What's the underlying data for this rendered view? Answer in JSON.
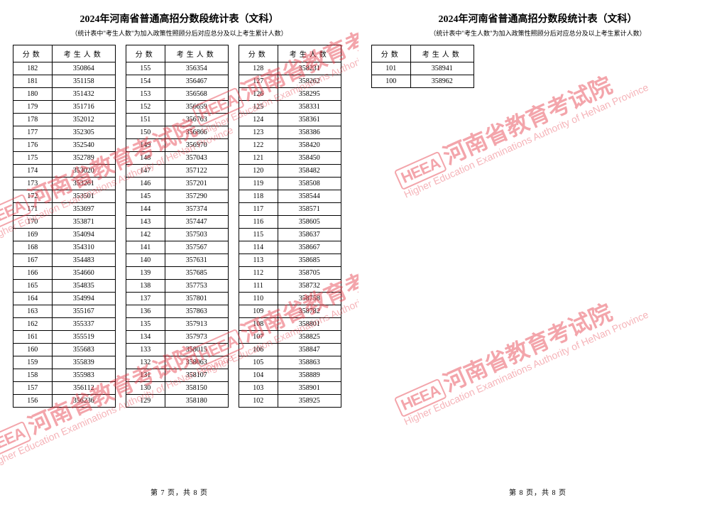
{
  "document": {
    "title": "2024年河南省普通高招分数段统计表（文科）",
    "subtitle": "（统计表中\"考生人数\"为加入政策性照顾分后对应总分及以上考生累计人数）",
    "score_header": "分数",
    "count_header": "考生人数",
    "watermark_logo": "HEEA",
    "watermark_cn": "河南省教育考试院",
    "watermark_en": "Higher Education Examinations Authority of HeNan Province",
    "colors": {
      "watermark": "#e63946",
      "text": "#000000",
      "border": "#000000",
      "background": "#ffffff"
    }
  },
  "pages": [
    {
      "footer": "第 7 页，共 8 页",
      "columns": [
        [
          {
            "score": 182,
            "count": 350864
          },
          {
            "score": 181,
            "count": 351158
          },
          {
            "score": 180,
            "count": 351432
          },
          {
            "score": 179,
            "count": 351716
          },
          {
            "score": 178,
            "count": 352012
          },
          {
            "score": 177,
            "count": 352305
          },
          {
            "score": 176,
            "count": 352540
          },
          {
            "score": 175,
            "count": 352789
          },
          {
            "score": 174,
            "count": 353020
          },
          {
            "score": 173,
            "count": 353261
          },
          {
            "score": 172,
            "count": 353501
          },
          {
            "score": 171,
            "count": 353697
          },
          {
            "score": 170,
            "count": 353871
          },
          {
            "score": 169,
            "count": 354094
          },
          {
            "score": 168,
            "count": 354310
          },
          {
            "score": 167,
            "count": 354483
          },
          {
            "score": 166,
            "count": 354660
          },
          {
            "score": 165,
            "count": 354835
          },
          {
            "score": 164,
            "count": 354994
          },
          {
            "score": 163,
            "count": 355167
          },
          {
            "score": 162,
            "count": 355337
          },
          {
            "score": 161,
            "count": 355519
          },
          {
            "score": 160,
            "count": 355683
          },
          {
            "score": 159,
            "count": 355839
          },
          {
            "score": 158,
            "count": 355983
          },
          {
            "score": 157,
            "count": 356112
          },
          {
            "score": 156,
            "count": 356236
          }
        ],
        [
          {
            "score": 155,
            "count": 356354
          },
          {
            "score": 154,
            "count": 356467
          },
          {
            "score": 153,
            "count": 356568
          },
          {
            "score": 152,
            "count": 356659
          },
          {
            "score": 151,
            "count": 356763
          },
          {
            "score": 150,
            "count": 356866
          },
          {
            "score": 149,
            "count": 356970
          },
          {
            "score": 148,
            "count": 357043
          },
          {
            "score": 147,
            "count": 357122
          },
          {
            "score": 146,
            "count": 357201
          },
          {
            "score": 145,
            "count": 357290
          },
          {
            "score": 144,
            "count": 357374
          },
          {
            "score": 143,
            "count": 357447
          },
          {
            "score": 142,
            "count": 357503
          },
          {
            "score": 141,
            "count": 357567
          },
          {
            "score": 140,
            "count": 357631
          },
          {
            "score": 139,
            "count": 357685
          },
          {
            "score": 138,
            "count": 357753
          },
          {
            "score": 137,
            "count": 357801
          },
          {
            "score": 136,
            "count": 357863
          },
          {
            "score": 135,
            "count": 357913
          },
          {
            "score": 134,
            "count": 357973
          },
          {
            "score": 133,
            "count": 358015
          },
          {
            "score": 132,
            "count": 358063
          },
          {
            "score": 131,
            "count": 358107
          },
          {
            "score": 130,
            "count": 358150
          },
          {
            "score": 129,
            "count": 358180
          }
        ],
        [
          {
            "score": 128,
            "count": 358231
          },
          {
            "score": 127,
            "count": 358262
          },
          {
            "score": 126,
            "count": 358295
          },
          {
            "score": 125,
            "count": 358331
          },
          {
            "score": 124,
            "count": 358361
          },
          {
            "score": 123,
            "count": 358386
          },
          {
            "score": 122,
            "count": 358420
          },
          {
            "score": 121,
            "count": 358450
          },
          {
            "score": 120,
            "count": 358482
          },
          {
            "score": 119,
            "count": 358508
          },
          {
            "score": 118,
            "count": 358544
          },
          {
            "score": 117,
            "count": 358571
          },
          {
            "score": 116,
            "count": 358605
          },
          {
            "score": 115,
            "count": 358637
          },
          {
            "score": 114,
            "count": 358667
          },
          {
            "score": 113,
            "count": 358685
          },
          {
            "score": 112,
            "count": 358705
          },
          {
            "score": 111,
            "count": 358732
          },
          {
            "score": 110,
            "count": 358758
          },
          {
            "score": 109,
            "count": 358782
          },
          {
            "score": 108,
            "count": 358801
          },
          {
            "score": 107,
            "count": 358825
          },
          {
            "score": 106,
            "count": 358847
          },
          {
            "score": 105,
            "count": 358863
          },
          {
            "score": 104,
            "count": 358889
          },
          {
            "score": 103,
            "count": 358901
          },
          {
            "score": 102,
            "count": 358925
          }
        ]
      ]
    },
    {
      "footer": "第 8 页，共 8 页",
      "columns": [
        [
          {
            "score": 101,
            "count": 358941
          },
          {
            "score": 100,
            "count": 358962
          }
        ]
      ]
    }
  ]
}
